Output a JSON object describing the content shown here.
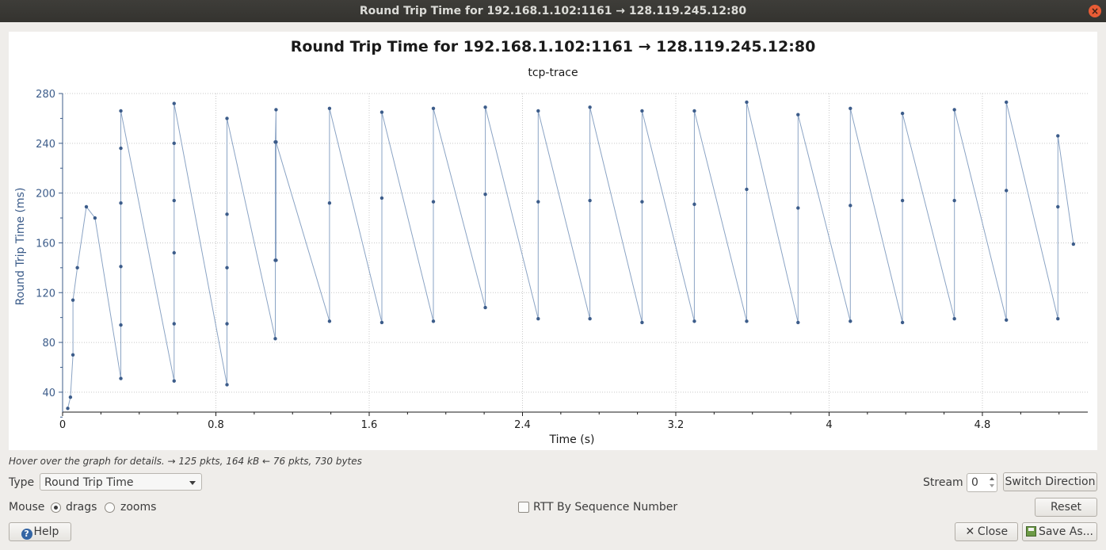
{
  "window": {
    "title": "Round Trip Time for 192.168.1.102:1161 → 128.119.245.12:80"
  },
  "chart_data": {
    "type": "scatter",
    "title": "Round Trip Time for 192.168.1.102:1161 → 128.119.245.12:80",
    "subtitle": "tcp-trace",
    "xlabel": "Time (s)",
    "ylabel": "Round Trip Time (ms)",
    "xlim": [
      0,
      5.35
    ],
    "ylim": [
      24,
      280
    ],
    "xticks": [
      0,
      0.8,
      1.6,
      2.4,
      3.2,
      4,
      4.8
    ],
    "xtick_labels": [
      "0",
      "0.8",
      "1.6",
      "2.4",
      "3.2",
      "4",
      "4.8"
    ],
    "yticks": [
      40,
      80,
      120,
      160,
      200,
      240,
      280
    ],
    "ytick_labels": [
      "40",
      "80",
      "120",
      "160",
      "200",
      "240",
      "280"
    ],
    "grid": true,
    "connected": true,
    "color": "#3c5c8a",
    "x": [
      0.027,
      0.041,
      0.054,
      0.054,
      0.077,
      0.124,
      0.169,
      0.304,
      0.304,
      0.304,
      0.304,
      0.304,
      0.304,
      0.582,
      0.582,
      0.582,
      0.582,
      0.582,
      0.582,
      0.858,
      0.858,
      0.858,
      0.858,
      0.858,
      1.11,
      1.11,
      1.11,
      1.114,
      1.114,
      1.114,
      1.393,
      1.393,
      1.393,
      1.666,
      1.666,
      1.666,
      1.935,
      1.935,
      1.935,
      2.206,
      2.206,
      2.206,
      2.482,
      2.482,
      2.482,
      2.752,
      2.752,
      2.752,
      3.024,
      3.024,
      3.024,
      3.297,
      3.297,
      3.297,
      3.57,
      3.57,
      3.57,
      3.838,
      3.838,
      3.838,
      4.111,
      4.111,
      4.111,
      4.383,
      4.383,
      4.383,
      4.654,
      4.654,
      4.654,
      4.925,
      4.925,
      4.925,
      5.194,
      5.194,
      5.194,
      5.275
    ],
    "y": [
      27,
      36,
      70,
      114,
      140,
      189,
      180,
      51,
      94,
      141,
      192,
      236,
      266,
      49,
      95,
      152,
      194,
      240,
      272,
      46,
      95,
      140,
      183,
      260,
      83,
      146,
      241,
      267,
      146,
      241,
      97,
      192,
      268,
      96,
      196,
      265,
      97,
      193,
      268,
      108,
      199,
      269,
      99,
      193,
      266,
      99,
      194,
      269,
      96,
      193,
      266,
      97,
      191,
      266,
      97,
      203,
      273,
      96,
      188,
      263,
      97,
      190,
      268,
      96,
      194,
      264,
      99,
      194,
      267,
      98,
      202,
      273,
      99,
      189,
      246,
      159
    ]
  },
  "status": {
    "text": "Hover over the graph for details. → 125 pkts, 164 kB ← 76 pkts, 730 bytes"
  },
  "controls": {
    "type_label": "Type",
    "type_value": "Round Trip Time",
    "stream_label": "Stream",
    "stream_value": "0",
    "switch_direction": "Switch Direction",
    "mouse_label": "Mouse",
    "drags_label": "drags",
    "zooms_label": "zooms",
    "rtt_seq_label": "RTT By Sequence Number",
    "reset": "Reset",
    "help": "Help",
    "close": "Close",
    "save_as": "Save As..."
  }
}
